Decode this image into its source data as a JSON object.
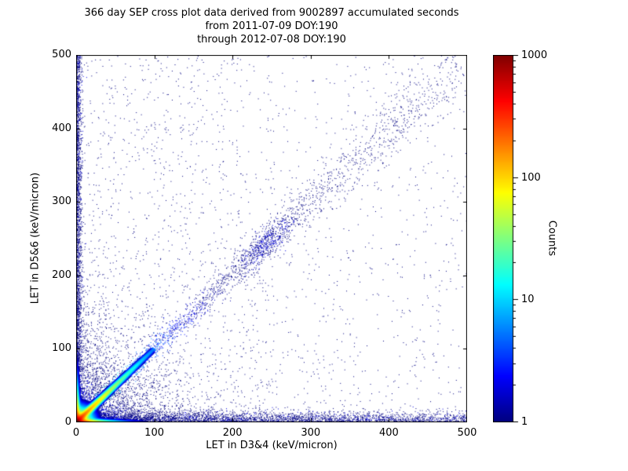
{
  "title": {
    "line1": "366 day SEP cross plot data derived from 9002897 accumulated seconds",
    "line2": "from 2011-07-09 DOY:190",
    "line3": "through 2012-07-08 DOY:190"
  },
  "chart_data": {
    "type": "scatter",
    "subtype": "density cross plot (2D histogram, jet colormap, log counts)",
    "title": "366 day SEP cross plot data derived from 9002897 accumulated seconds from 2011-07-09 DOY:190 through 2012-07-08 DOY:190",
    "xlabel": "LET in D3&4 (keV/micron)",
    "ylabel": "LET in D5&6 (keV/micron)",
    "xlim": [
      0,
      500
    ],
    "ylim": [
      0,
      500
    ],
    "x_ticks": [
      0,
      100,
      200,
      300,
      400,
      500
    ],
    "y_ticks": [
      0,
      100,
      200,
      300,
      400,
      500
    ],
    "grid": false,
    "colorbar": {
      "label": "Counts",
      "scale": "log",
      "min": 1,
      "max": 1000,
      "ticks": [
        1,
        10,
        100,
        1000
      ],
      "colormap": "jet"
    },
    "density_features": [
      {
        "type": "uniform_scatter",
        "n": 1400,
        "x": [
          0,
          500
        ],
        "y": [
          0,
          500
        ],
        "count": 1
      },
      {
        "type": "uniform_scatter",
        "n": 520,
        "x": [
          0,
          250
        ],
        "y": [
          0,
          500
        ],
        "count": 1
      },
      {
        "type": "left_band",
        "n": 2600,
        "sigma_x": 3.5,
        "y_max": 500
      },
      {
        "type": "bottom_band",
        "n": 3800,
        "sigma_y": 7,
        "x_max": 500,
        "x_power": 1.6
      },
      {
        "type": "corner_scatter",
        "n": 3000,
        "scale": 45,
        "count_max": 4
      },
      {
        "type": "diagonal_band",
        "n": 2800,
        "t_max": 500,
        "t_power": 2.0,
        "sigma0": 2,
        "sigma_slope": 0.035,
        "count0": 25,
        "count_decay": 55
      },
      {
        "type": "diagonal_cluster",
        "n": 420,
        "t_mean": 243,
        "t_sigma": 16,
        "sigma": 7,
        "count": 2
      },
      {
        "type": "origin_field",
        "extent": 100,
        "core_amp": 1100,
        "core_scale": 4.8,
        "axis_amp": 420,
        "axis_len": 16,
        "axis_width": 3.0,
        "diag_amp": 260,
        "diag_len": 26,
        "diag_width": 3.0
      }
    ]
  }
}
